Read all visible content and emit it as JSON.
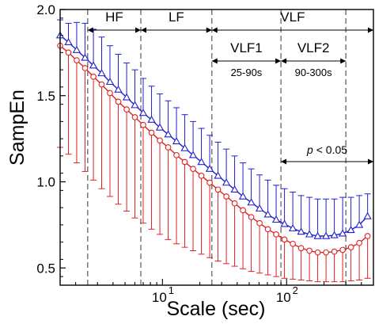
{
  "chart_data": {
    "type": "line",
    "xscale": "log",
    "xlabel": "Scale (sec)",
    "ylabel": "SampEn",
    "xlim": [
      1.5,
      500
    ],
    "ylim": [
      0.4,
      2.0
    ],
    "yticks": [
      "0.5",
      "1.0",
      "1.5",
      "2.0"
    ],
    "xticks": [
      {
        "base": "10",
        "exp": "1",
        "value": 10
      },
      {
        "base": "10",
        "exp": "2",
        "value": 100
      }
    ],
    "colors": {
      "triangle": "#1f1fd0",
      "circle": "#e02020",
      "divider": "#666666"
    },
    "x": [
      1.5,
      1.75,
      2.04,
      2.38,
      2.78,
      3.24,
      3.78,
      4.41,
      5.15,
      6.0,
      7.0,
      8.17,
      9.53,
      11.12,
      12.97,
      15.13,
      17.65,
      20.59,
      24.02,
      28.02,
      32.69,
      38.13,
      44.49,
      51.9,
      60.54,
      70.63,
      82.39,
      96.12,
      112.13,
      130.8,
      152.6,
      178.01,
      207.67,
      242.27,
      282.63,
      329.72,
      384.65,
      448.73
    ],
    "series": [
      {
        "marker": "triangle",
        "mean": [
          1.85,
          1.81,
          1.765,
          1.72,
          1.675,
          1.63,
          1.58,
          1.535,
          1.49,
          1.445,
          1.4,
          1.36,
          1.315,
          1.275,
          1.235,
          1.195,
          1.155,
          1.115,
          1.075,
          1.035,
          0.995,
          0.955,
          0.915,
          0.88,
          0.845,
          0.81,
          0.78,
          0.755,
          0.73,
          0.71,
          0.695,
          0.685,
          0.685,
          0.69,
          0.7,
          0.72,
          0.75,
          0.8
        ],
        "upper": [
          1.94,
          1.92,
          1.925,
          1.92,
          1.885,
          1.84,
          1.79,
          1.74,
          1.69,
          1.65,
          1.6,
          1.555,
          1.51,
          1.47,
          1.43,
          1.39,
          1.35,
          1.31,
          1.27,
          1.23,
          1.19,
          1.15,
          1.11,
          1.075,
          1.04,
          1.01,
          0.98,
          0.96,
          0.94,
          0.92,
          0.91,
          0.9,
          0.9,
          0.9,
          0.91,
          0.91,
          0.92,
          0.93
        ]
      },
      {
        "marker": "circle",
        "mean": [
          1.79,
          1.75,
          1.705,
          1.66,
          1.61,
          1.565,
          1.515,
          1.465,
          1.42,
          1.375,
          1.33,
          1.285,
          1.24,
          1.2,
          1.155,
          1.115,
          1.075,
          1.035,
          0.995,
          0.955,
          0.915,
          0.875,
          0.835,
          0.795,
          0.76,
          0.725,
          0.695,
          0.665,
          0.64,
          0.615,
          0.6,
          0.59,
          0.59,
          0.595,
          0.605,
          0.62,
          0.645,
          0.685
        ],
        "lower": [
          1.2,
          1.16,
          1.11,
          1.06,
          1.01,
          0.96,
          0.915,
          0.87,
          0.83,
          0.79,
          0.76,
          0.725,
          0.695,
          0.665,
          0.64,
          0.62,
          0.6,
          0.58,
          0.56,
          0.54,
          0.525,
          0.51,
          0.495,
          0.48,
          0.47,
          0.46,
          0.45,
          0.44,
          0.435,
          0.43,
          0.425,
          0.42,
          0.42,
          0.42,
          0.42,
          0.425,
          0.43,
          0.44
        ]
      }
    ],
    "dividers": [
      2.5,
      6.7,
      25,
      90,
      300
    ],
    "bands": [
      {
        "label": "HF",
        "from": 2.5,
        "to": 6.7,
        "sub": ""
      },
      {
        "label": "LF",
        "from": 6.7,
        "to": 25,
        "sub": ""
      },
      {
        "label": "VLF",
        "from": 25,
        "to": 500,
        "sub": ""
      },
      {
        "label": "VLF1",
        "from": 25,
        "to": 90,
        "sub": "25-90s"
      },
      {
        "label": "VLF2",
        "from": 90,
        "to": 300,
        "sub": "90-300s"
      }
    ],
    "significance": {
      "p": "p",
      "text": " < 0.05",
      "from": 90,
      "to": 500
    }
  }
}
